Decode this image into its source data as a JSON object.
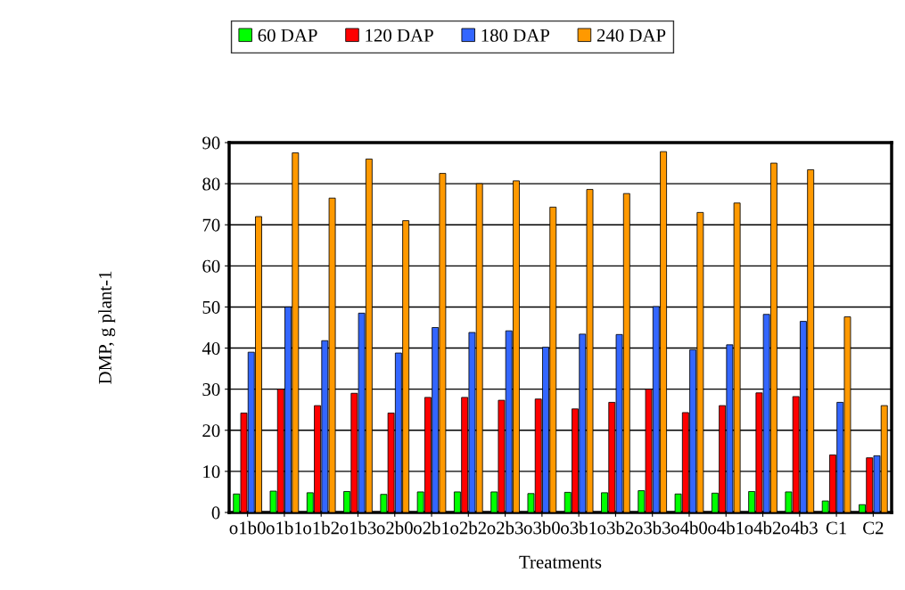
{
  "chart_data": {
    "type": "bar",
    "xlabel": "Treatments",
    "ylabel": "DMP, g plant-1",
    "categories": [
      "o1b0",
      "o1b1",
      "o1b2",
      "o1b3",
      "o2b0",
      "o2b1",
      "o2b2",
      "o2b3",
      "o3b0",
      "o3b1",
      "o3b2",
      "o3b3",
      "o4b0",
      "o4b1",
      "o4b2",
      "o4b3",
      "C1",
      "C2"
    ],
    "series": [
      {
        "name": "60 DAP",
        "color": "#00ff00",
        "values": [
          4.5,
          5.2,
          4.8,
          5.1,
          4.4,
          5,
          5,
          5,
          4.6,
          4.9,
          4.8,
          5.3,
          4.5,
          4.7,
          5.1,
          5,
          2.8,
          1.9
        ]
      },
      {
        "name": "120 DAP",
        "color": "#ff0000",
        "values": [
          24.2,
          30,
          26,
          29,
          24.2,
          28,
          28,
          27.3,
          27.6,
          25.2,
          26.8,
          30,
          24.3,
          26,
          29.1,
          28.2,
          14,
          13.3
        ]
      },
      {
        "name": "180 DAP",
        "color": "#3366ff",
        "values": [
          39,
          50,
          41.8,
          48.5,
          38.8,
          45,
          43.8,
          44.2,
          40.2,
          43.4,
          43.3,
          50.1,
          39.6,
          40.8,
          48.2,
          46.5,
          26.8,
          13.8
        ]
      },
      {
        "name": "240 DAP",
        "color": "#ff9900",
        "values": [
          72,
          87.5,
          76.5,
          86,
          71,
          82.5,
          80,
          80.7,
          74.3,
          78.6,
          77.6,
          87.8,
          73,
          75.3,
          85,
          83.4,
          47.6,
          26
        ]
      }
    ],
    "ylim": [
      0,
      90
    ],
    "yticks": [
      0,
      10,
      20,
      30,
      40,
      50,
      60,
      70,
      80,
      90
    ],
    "grid": "y",
    "legend": "top"
  }
}
